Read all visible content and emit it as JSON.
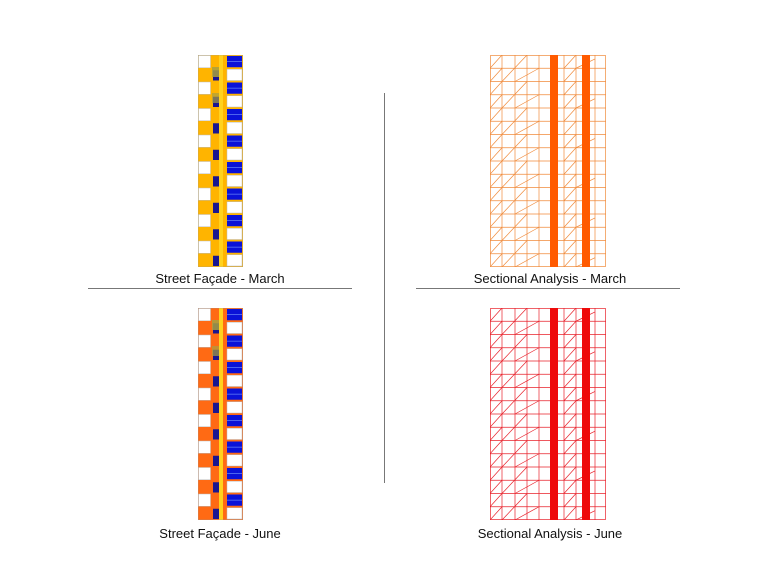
{
  "captions": {
    "facade_march": "Street Façade - March",
    "section_march": "Sectional Analysis - March",
    "facade_june": "Street Façade - June",
    "section_june": "Sectional Analysis - June"
  },
  "colors": {
    "facade_march_base": "#ffb400",
    "facade_june_base": "#ff6a14",
    "window_blue": "#0a12d8",
    "dark_blue": "#1a1690",
    "center_stripe": "#ffd21e",
    "section_march_line": "#f08a3a",
    "section_march_column": "#ff5a00",
    "section_june_line": "#e8202a",
    "section_june_column": "#ee0a0a",
    "divider": "#777777"
  }
}
